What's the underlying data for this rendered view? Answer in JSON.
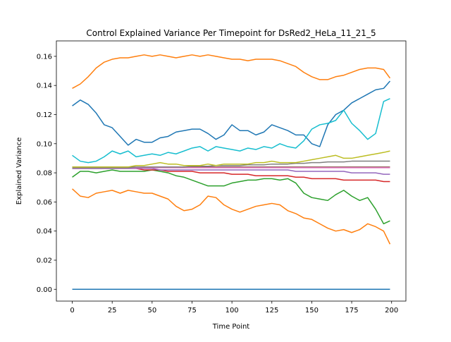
{
  "chart_data": {
    "type": "line",
    "title": "Control Explained Variance Per Timepoint for DsRed2_HeLa_11_21_5",
    "xlabel": "Time Point",
    "ylabel": "Explained Variance",
    "xlim": [
      -9.95,
      208.95
    ],
    "ylim": [
      -0.0081,
      0.1706
    ],
    "xticks": [
      0,
      25,
      50,
      75,
      100,
      125,
      150,
      175,
      200
    ],
    "xtick_labels": [
      "0",
      "25",
      "50",
      "75",
      "100",
      "125",
      "150",
      "175",
      "200"
    ],
    "yticks": [
      0.0,
      0.02,
      0.04,
      0.06,
      0.08,
      0.1,
      0.12,
      0.14,
      0.16
    ],
    "ytick_labels": [
      "0.00",
      "0.02",
      "0.04",
      "0.06",
      "0.08",
      "0.10",
      "0.12",
      "0.14",
      "0.16"
    ],
    "grid": false,
    "legend": "none",
    "sample_step": 5,
    "sample_x_last": 199,
    "series": [
      {
        "color": "#1f77b4",
        "values": [
          0.126,
          0.13,
          0.127,
          0.121,
          0.113,
          0.111,
          0.105,
          0.099,
          0.103,
          0.101,
          0.101,
          0.104,
          0.105,
          0.108,
          0.109,
          0.11,
          0.11,
          0.107,
          0.103,
          0.106,
          0.113,
          0.109,
          0.109,
          0.106,
          0.108,
          0.113,
          0.111,
          0.109,
          0.106,
          0.106,
          0.1,
          0.098,
          0.113,
          0.12,
          0.123,
          0.128,
          0.131,
          0.134,
          0.137,
          0.138,
          0.143
        ]
      },
      {
        "color": "#ff7f0e",
        "values": [
          0.138,
          0.141,
          0.146,
          0.152,
          0.156,
          0.158,
          0.159,
          0.159,
          0.16,
          0.161,
          0.16,
          0.161,
          0.16,
          0.159,
          0.16,
          0.161,
          0.16,
          0.161,
          0.16,
          0.159,
          0.158,
          0.158,
          0.157,
          0.158,
          0.158,
          0.158,
          0.157,
          0.155,
          0.153,
          0.149,
          0.146,
          0.144,
          0.144,
          0.146,
          0.147,
          0.149,
          0.151,
          0.152,
          0.152,
          0.151,
          0.145
        ]
      },
      {
        "color": "#ff7f0e",
        "values": [
          0.069,
          0.064,
          0.063,
          0.066,
          0.067,
          0.068,
          0.066,
          0.068,
          0.067,
          0.066,
          0.066,
          0.064,
          0.062,
          0.057,
          0.054,
          0.055,
          0.058,
          0.064,
          0.063,
          0.058,
          0.055,
          0.053,
          0.055,
          0.057,
          0.058,
          0.059,
          0.058,
          0.054,
          0.052,
          0.049,
          0.048,
          0.045,
          0.042,
          0.04,
          0.041,
          0.039,
          0.041,
          0.045,
          0.043,
          0.04,
          0.031
        ]
      },
      {
        "color": "#2ca02c",
        "values": [
          0.077,
          0.081,
          0.081,
          0.08,
          0.081,
          0.082,
          0.081,
          0.081,
          0.081,
          0.081,
          0.082,
          0.081,
          0.08,
          0.078,
          0.077,
          0.075,
          0.073,
          0.071,
          0.071,
          0.071,
          0.073,
          0.074,
          0.075,
          0.075,
          0.076,
          0.076,
          0.075,
          0.076,
          0.073,
          0.066,
          0.063,
          0.062,
          0.061,
          0.065,
          0.068,
          0.064,
          0.061,
          0.063,
          0.055,
          0.045,
          0.047
        ]
      },
      {
        "color": "#d62728",
        "values": [
          0.083,
          0.083,
          0.083,
          0.083,
          0.083,
          0.083,
          0.083,
          0.083,
          0.083,
          0.082,
          0.082,
          0.082,
          0.081,
          0.081,
          0.081,
          0.081,
          0.08,
          0.08,
          0.08,
          0.08,
          0.079,
          0.079,
          0.079,
          0.078,
          0.078,
          0.078,
          0.078,
          0.078,
          0.077,
          0.077,
          0.076,
          0.076,
          0.076,
          0.076,
          0.075,
          0.075,
          0.075,
          0.075,
          0.075,
          0.074,
          0.074
        ]
      },
      {
        "color": "#9467bd",
        "values": [
          0.083,
          0.083,
          0.083,
          0.083,
          0.083,
          0.083,
          0.083,
          0.083,
          0.083,
          0.083,
          0.083,
          0.082,
          0.082,
          0.082,
          0.082,
          0.082,
          0.082,
          0.082,
          0.082,
          0.082,
          0.082,
          0.082,
          0.082,
          0.082,
          0.082,
          0.082,
          0.082,
          0.082,
          0.081,
          0.081,
          0.081,
          0.081,
          0.081,
          0.081,
          0.081,
          0.08,
          0.08,
          0.08,
          0.08,
          0.079,
          0.079
        ]
      },
      {
        "color": "#8c564b",
        "values": [
          0.084,
          0.084,
          0.084,
          0.084,
          0.084,
          0.084,
          0.084,
          0.084,
          0.084,
          0.084,
          0.084,
          0.084,
          0.084,
          0.084,
          0.084,
          0.084,
          0.084,
          0.084,
          0.084,
          0.084,
          0.084,
          0.084,
          0.084,
          0.084,
          0.084,
          0.084,
          0.084,
          0.084,
          0.084,
          0.084,
          0.084,
          0.084,
          0.084,
          0.084,
          0.084,
          0.084,
          0.084,
          0.084,
          0.084,
          0.084,
          0.084
        ]
      },
      {
        "color": "#e377c2",
        "values": [
          0.0835,
          0.0835,
          0.0835,
          0.0835,
          0.0835,
          0.0835,
          0.0835,
          0.0835,
          0.0835,
          0.0835,
          0.0835,
          0.0835,
          0.0835,
          0.0835,
          0.0835,
          0.0835,
          0.0835,
          0.0835,
          0.0835,
          0.0835,
          0.0835,
          0.0835,
          0.0835,
          0.0835,
          0.0835,
          0.0835,
          0.0835,
          0.0835,
          0.0835,
          0.0835,
          0.0835,
          0.0835,
          0.0835,
          0.0835,
          0.0835,
          0.0835,
          0.0835,
          0.0835,
          0.0835,
          0.0835,
          0.0835
        ]
      },
      {
        "color": "#7f7f7f",
        "values": [
          0.0835,
          0.0835,
          0.0835,
          0.0835,
          0.0835,
          0.0835,
          0.0835,
          0.0835,
          0.084,
          0.084,
          0.084,
          0.084,
          0.084,
          0.084,
          0.084,
          0.0845,
          0.0845,
          0.0845,
          0.085,
          0.085,
          0.085,
          0.085,
          0.0855,
          0.0855,
          0.0855,
          0.086,
          0.086,
          0.086,
          0.0865,
          0.0865,
          0.087,
          0.087,
          0.0875,
          0.0875,
          0.0875,
          0.088,
          0.088,
          0.088,
          0.088,
          0.088,
          0.088
        ]
      },
      {
        "color": "#bcbd22",
        "values": [
          0.084,
          0.084,
          0.084,
          0.084,
          0.084,
          0.084,
          0.084,
          0.084,
          0.085,
          0.085,
          0.086,
          0.087,
          0.086,
          0.086,
          0.085,
          0.085,
          0.085,
          0.086,
          0.085,
          0.086,
          0.086,
          0.086,
          0.086,
          0.087,
          0.087,
          0.088,
          0.087,
          0.087,
          0.087,
          0.088,
          0.089,
          0.09,
          0.091,
          0.092,
          0.09,
          0.09,
          0.091,
          0.092,
          0.093,
          0.094,
          0.095
        ]
      },
      {
        "color": "#17becf",
        "values": [
          0.092,
          0.088,
          0.087,
          0.088,
          0.091,
          0.095,
          0.093,
          0.095,
          0.091,
          0.092,
          0.093,
          0.092,
          0.094,
          0.093,
          0.095,
          0.097,
          0.098,
          0.095,
          0.098,
          0.097,
          0.096,
          0.095,
          0.097,
          0.096,
          0.098,
          0.097,
          0.1,
          0.098,
          0.097,
          0.102,
          0.11,
          0.113,
          0.114,
          0.116,
          0.123,
          0.114,
          0.109,
          0.103,
          0.107,
          0.129,
          0.131
        ]
      },
      {
        "color": "#1f77b4",
        "values": [
          0.0,
          0.0,
          0.0,
          0.0,
          0.0,
          0.0,
          0.0,
          0.0,
          0.0,
          0.0,
          0.0,
          0.0,
          0.0,
          0.0,
          0.0,
          0.0,
          0.0,
          0.0,
          0.0,
          0.0,
          0.0,
          0.0,
          0.0,
          0.0,
          0.0,
          0.0,
          0.0,
          0.0,
          0.0,
          0.0,
          0.0,
          0.0,
          0.0,
          0.0,
          0.0,
          0.0,
          0.0,
          0.0,
          0.0,
          0.0,
          0.0
        ]
      }
    ]
  }
}
